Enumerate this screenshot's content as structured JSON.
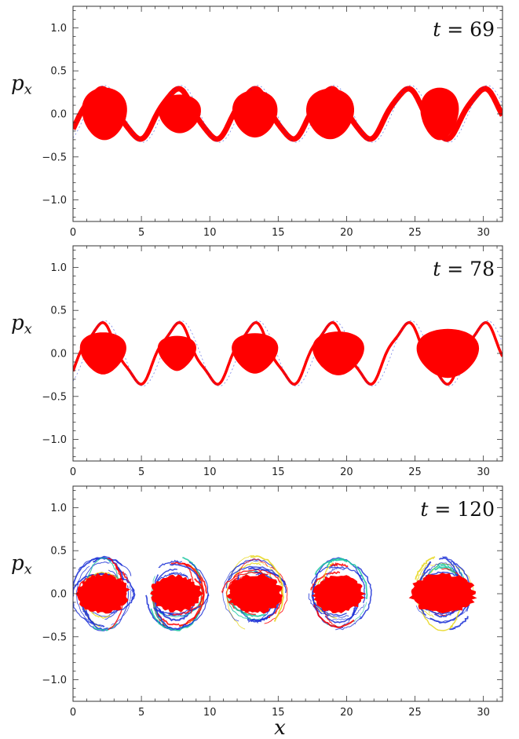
{
  "colors": {
    "core": "#ff0000",
    "filament_blue": "#1a2fd6",
    "filament_green": "#19c6a0",
    "filament_yellow": "#e6d619",
    "axis": "#333333",
    "background": "#ffffff"
  },
  "chart_data": [
    {
      "type": "scatter",
      "title": "t = 69",
      "title_parts": {
        "var": "t",
        "eq": "=",
        "val": "69"
      },
      "ylabel": "p",
      "ylabel_sub": "x",
      "xlabel": "",
      "xlim": [
        0,
        31.4
      ],
      "ylim": [
        -1.25,
        1.25
      ],
      "xticks": [
        0,
        5,
        10,
        15,
        20,
        25,
        30
      ],
      "yticks": [
        -1.0,
        -0.5,
        0.0,
        0.5,
        1.0
      ],
      "ytick_labels": [
        "−1.0",
        "−0.5",
        "0.0",
        "0.5",
        "1.0"
      ],
      "grid": false,
      "stage": "connected-waves",
      "vortex_centers": [
        2.3,
        7.8,
        13.3,
        18.8,
        26.8
      ],
      "vortex_halfwidth": [
        0.3,
        0.22,
        0.27,
        0.29,
        0.3
      ],
      "vortex_halfheight": [
        1.6,
        1.5,
        1.6,
        1.7,
        1.35
      ]
    },
    {
      "type": "scatter",
      "title": "t = 78",
      "title_parts": {
        "var": "t",
        "eq": "=",
        "val": "78"
      },
      "ylabel": "p",
      "ylabel_sub": "x",
      "xlabel": "",
      "xlim": [
        0,
        31.4
      ],
      "ylim": [
        -1.25,
        1.25
      ],
      "xticks": [
        0,
        5,
        10,
        15,
        20,
        25,
        30
      ],
      "yticks": [
        -1.0,
        -0.5,
        0.0,
        0.5,
        1.0
      ],
      "ytick_labels": [
        "−1.0",
        "−0.5",
        "0.0",
        "0.5",
        "1.0"
      ],
      "grid": false,
      "stage": "rolling-vortices",
      "vortex_centers": [
        2.2,
        7.6,
        13.3,
        19.4,
        27.4
      ],
      "vortex_halfwidth": [
        0.24,
        0.2,
        0.23,
        0.25,
        0.28
      ],
      "vortex_halfheight": [
        1.6,
        1.3,
        1.6,
        1.8,
        2.2
      ]
    },
    {
      "type": "scatter",
      "title": "t = 120",
      "title_parts": {
        "var": "t",
        "eq": "=",
        "val": "120"
      },
      "ylabel": "p",
      "ylabel_sub": "x",
      "xlabel": "x",
      "xlim": [
        0,
        31.4
      ],
      "ylim": [
        -1.25,
        1.25
      ],
      "xticks": [
        0,
        5,
        10,
        15,
        20,
        25,
        30
      ],
      "yticks": [
        -1.0,
        -0.5,
        0.0,
        0.5,
        1.0
      ],
      "ytick_labels": [
        "−1.0",
        "−0.5",
        "0.0",
        "0.5",
        "1.0"
      ],
      "grid": false,
      "stage": "turbulent-filaments",
      "vortex_centers": [
        2.2,
        7.5,
        13.3,
        19.4,
        27.0
      ],
      "vortex_halfwidth": [
        0.22,
        0.2,
        0.22,
        0.21,
        0.22
      ],
      "vortex_halfheight": [
        1.8,
        1.8,
        1.9,
        1.8,
        2.3
      ]
    }
  ]
}
